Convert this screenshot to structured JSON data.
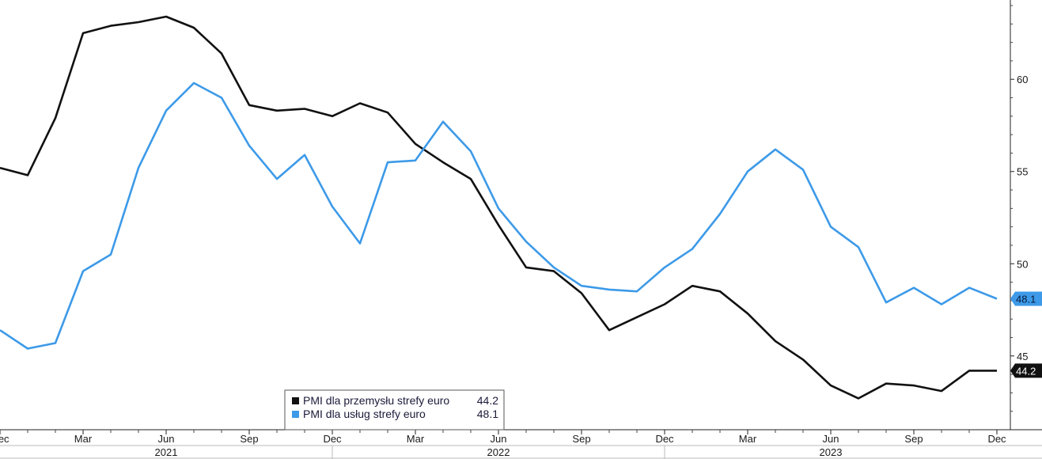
{
  "chart_data": {
    "type": "line",
    "x": [
      "2020-12",
      "2021-01",
      "2021-02",
      "2021-03",
      "2021-04",
      "2021-05",
      "2021-06",
      "2021-07",
      "2021-08",
      "2021-09",
      "2021-10",
      "2021-11",
      "2021-12",
      "2022-01",
      "2022-02",
      "2022-03",
      "2022-04",
      "2022-05",
      "2022-06",
      "2022-07",
      "2022-08",
      "2022-09",
      "2022-10",
      "2022-11",
      "2022-12",
      "2023-01",
      "2023-02",
      "2023-03",
      "2023-04",
      "2023-05",
      "2023-06",
      "2023-07",
      "2023-08",
      "2023-09",
      "2023-10",
      "2023-11",
      "2023-12"
    ],
    "series": [
      {
        "name": "PMI dla przemysłu strefy euro",
        "color": "#111111",
        "last_label": "44.2",
        "values": [
          55.2,
          54.8,
          57.9,
          62.5,
          62.9,
          63.1,
          63.4,
          62.8,
          61.4,
          58.6,
          58.3,
          58.4,
          58.0,
          58.7,
          58.2,
          56.5,
          55.5,
          54.6,
          52.1,
          49.8,
          49.6,
          48.4,
          46.4,
          47.1,
          47.8,
          48.8,
          48.5,
          47.3,
          45.8,
          44.8,
          43.4,
          42.7,
          43.5,
          43.4,
          43.1,
          44.2,
          44.2
        ]
      },
      {
        "name": "PMI dla usług strefy euro",
        "color": "#3d9ae8",
        "last_label": "48.1",
        "values": [
          46.4,
          45.4,
          45.7,
          49.6,
          50.5,
          55.2,
          58.3,
          59.8,
          59.0,
          56.4,
          54.6,
          55.9,
          53.1,
          51.1,
          55.5,
          55.6,
          57.7,
          56.1,
          53.0,
          51.2,
          49.8,
          48.8,
          48.6,
          48.5,
          49.8,
          50.8,
          52.7,
          55.0,
          56.2,
          55.1,
          52.0,
          50.9,
          47.9,
          48.7,
          47.8,
          48.7,
          48.1
        ]
      }
    ],
    "x_tick_labels": [
      "Dec",
      "Mar",
      "Jun",
      "Sep",
      "Dec",
      "Mar",
      "Jun",
      "Sep",
      "Dec",
      "Mar",
      "Jun",
      "Sep",
      "Dec"
    ],
    "year_labels": [
      "2021",
      "2022",
      "2023"
    ],
    "y_ticks": [
      "45",
      "50",
      "55",
      "60"
    ],
    "ylim": [
      41,
      64.3
    ],
    "title": "",
    "xlabel": "",
    "ylabel": "",
    "grid": false,
    "legend_position": "bottom-center"
  }
}
